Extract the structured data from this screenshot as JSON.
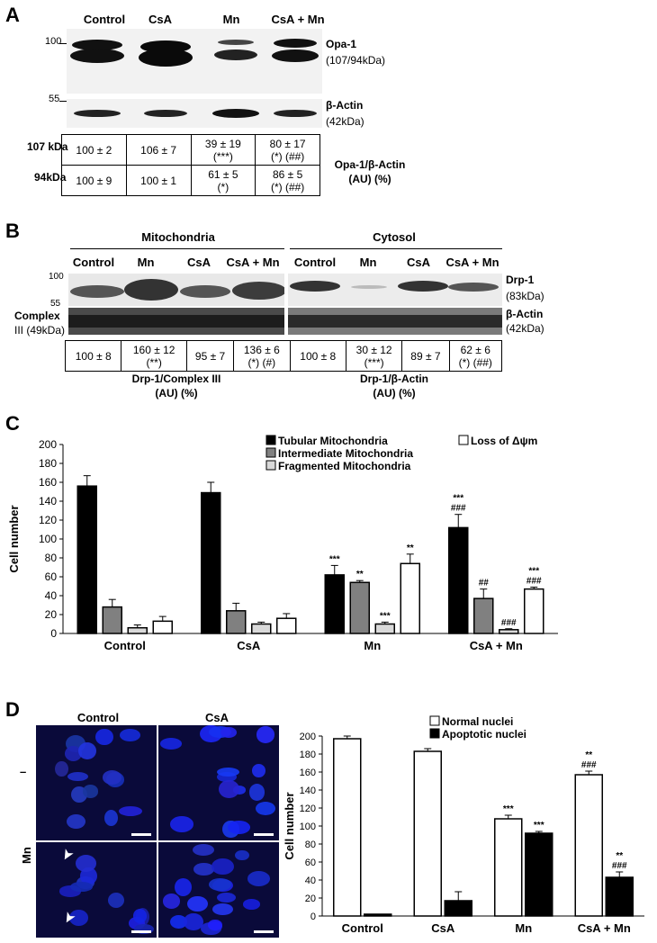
{
  "panel_a": {
    "letter": "A",
    "lanes": [
      "Control",
      "CsA",
      "Mn",
      "CsA + Mn"
    ],
    "markers": [
      "100",
      "55"
    ],
    "band_labels": [
      {
        "name": "Opa-1",
        "size": "(107/94kDa)"
      },
      {
        "name": "β-Actin",
        "size": "(42kDa)"
      }
    ],
    "row_labels": [
      "107 kDa",
      "94kDa"
    ],
    "table": [
      [
        {
          "v": "100 ± 2",
          "s": ""
        },
        {
          "v": "106 ± 7",
          "s": ""
        },
        {
          "v": "39 ± 19",
          "s": "(***)"
        },
        {
          "v": "80 ± 17",
          "s": "(*) (##)"
        }
      ],
      [
        {
          "v": "100 ± 9",
          "s": ""
        },
        {
          "v": "100 ± 1",
          "s": ""
        },
        {
          "v": "61 ± 5",
          "s": "(*)"
        },
        {
          "v": "86 ± 5",
          "s": "(*) (##)"
        }
      ]
    ],
    "quant_label": [
      "Opa-1/β-Actin",
      "(AU) (%)"
    ]
  },
  "panel_b": {
    "letter": "B",
    "groups": [
      "Mitochondria",
      "Cytosol"
    ],
    "lanes": [
      "Control",
      "Mn",
      "CsA",
      "CsA + Mn",
      "Control",
      "Mn",
      "CsA",
      "CsA + Mn"
    ],
    "markers": [
      "100",
      "55"
    ],
    "left_label": [
      "Complex",
      "III (49kDa)"
    ],
    "band_labels": [
      {
        "name": "Drp-1",
        "size": "(83kDa)"
      },
      {
        "name": "β-Actin",
        "size": "(42kDa)"
      }
    ],
    "table": [
      {
        "v": "100 ± 8",
        "s": ""
      },
      {
        "v": "160 ± 12",
        "s": "(**)"
      },
      {
        "v": "95 ± 7",
        "s": ""
      },
      {
        "v": "136 ± 6",
        "s": "(*) (#)"
      },
      {
        "v": "100 ± 8",
        "s": ""
      },
      {
        "v": "30 ± 12",
        "s": "(***)"
      },
      {
        "v": "89 ± 7",
        "s": ""
      },
      {
        "v": "62 ± 6",
        "s": "(*) (##)"
      }
    ],
    "quant_labels": [
      [
        "Drp-1/Complex III",
        "(AU) (%)"
      ],
      [
        "Drp-1/β-Actin",
        "(AU) (%)"
      ]
    ]
  },
  "panel_c": {
    "letter": "C"
  },
  "panel_d": {
    "letter": "D",
    "image_cols": [
      "Control",
      "CsA"
    ],
    "image_rows": [
      "–",
      "Mn"
    ]
  },
  "chart_data": [
    {
      "type": "bar",
      "categories": [
        "Control",
        "CsA",
        "Mn",
        "CsA + Mn"
      ],
      "ylabel": "Cell number",
      "ylim": [
        0,
        200
      ],
      "yticks": [
        0,
        20,
        40,
        60,
        80,
        100,
        120,
        140,
        160,
        180,
        200
      ],
      "legend_position": "top",
      "series": [
        {
          "name": "Tubular Mitochondria",
          "color": "#000000",
          "values": [
            156,
            149,
            62,
            112
          ],
          "errors": [
            11,
            11,
            10,
            14
          ],
          "annotations": [
            "",
            "",
            "***",
            "***\n###"
          ]
        },
        {
          "name": "Intermediate Mitochondria",
          "color": "#808080",
          "values": [
            28,
            24,
            54,
            37
          ],
          "errors": [
            8,
            8,
            2,
            10
          ],
          "annotations": [
            "",
            "",
            "**",
            "##"
          ]
        },
        {
          "name": "Fragmented Mitochondria",
          "color": "#d9d9d9",
          "values": [
            6,
            10,
            10,
            4
          ],
          "errors": [
            3,
            2,
            2,
            1
          ],
          "annotations": [
            "",
            "",
            "***",
            "###"
          ]
        },
        {
          "name": "Loss of Δψm",
          "color": "#ffffff",
          "values": [
            13,
            16,
            74,
            47
          ],
          "errors": [
            5,
            5,
            10,
            2
          ],
          "annotations": [
            "",
            "",
            "**",
            "***\n###"
          ]
        }
      ]
    },
    {
      "type": "bar",
      "categories": [
        "Control",
        "CsA",
        "Mn",
        "CsA + Mn"
      ],
      "ylabel": "Cell number",
      "ylim": [
        0,
        200
      ],
      "yticks": [
        0,
        20,
        40,
        60,
        80,
        100,
        120,
        140,
        160,
        180,
        200
      ],
      "legend_position": "top",
      "series": [
        {
          "name": "Normal nuclei",
          "color": "#ffffff",
          "values": [
            197,
            183,
            108,
            157
          ],
          "errors": [
            3,
            3,
            4,
            4
          ],
          "annotations": [
            "",
            "",
            "***",
            "**\n###"
          ]
        },
        {
          "name": "Apoptotic nuclei",
          "color": "#000000",
          "values": [
            2,
            17,
            92,
            43
          ],
          "errors": [
            0,
            10,
            2,
            6
          ],
          "annotations": [
            "",
            "",
            "***",
            "**\n###"
          ]
        }
      ]
    }
  ]
}
